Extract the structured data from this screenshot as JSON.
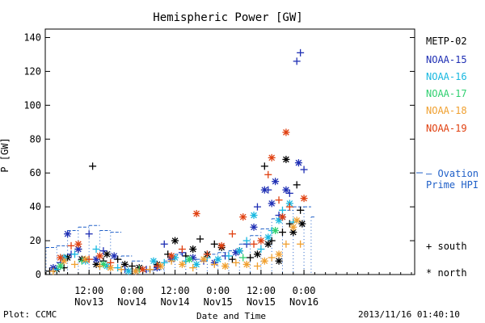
{
  "footer": {
    "plot_label": "Plot: CCMC",
    "timestamp": "2013/11/16 01:40:10"
  },
  "colors": {
    "METP-02": "#000000",
    "NOAA-15": "#1f2fb4",
    "NOAA-16": "#18b8e0",
    "NOAA-17": "#30d070",
    "NOAA-18": "#f0a030",
    "NOAA-19": "#e04010",
    "ovation": "#2060c8"
  },
  "chart_data": {
    "type": "scatter",
    "title": "Hemispheric Power [GW]",
    "xlabel": "Date and Time",
    "ylabel": "P [GW]",
    "ylim": [
      0,
      145
    ],
    "yticks": [
      0,
      20,
      40,
      60,
      80,
      100,
      120,
      140
    ],
    "xlim_hours": [
      0,
      102
    ],
    "xticks": [
      {
        "t": 12,
        "time": "12:00",
        "date": "Nov13"
      },
      {
        "t": 24,
        "time": "0:00",
        "date": "Nov14"
      },
      {
        "t": 36,
        "time": "12:00",
        "date": "Nov14"
      },
      {
        "t": 48,
        "time": "0:00",
        "date": "Nov15"
      },
      {
        "t": 60,
        "time": "12:00",
        "date": "Nov15"
      },
      {
        "t": 72,
        "time": "0:00",
        "date": "Nov16"
      }
    ],
    "legend": [
      "METP-02",
      "NOAA-15",
      "NOAA-16",
      "NOAA-17",
      "NOAA-18",
      "NOAA-19"
    ],
    "symbol_legend": [
      {
        "symbol": "+",
        "label": "south"
      },
      {
        "symbol": "*",
        "label": "north"
      }
    ],
    "ovation_label": [
      "– Ovation",
      "Prime HPI"
    ],
    "series": [
      {
        "name": "METP-02",
        "points": [
          [
            1,
            2,
            "+"
          ],
          [
            3,
            3,
            "*"
          ],
          [
            5,
            4,
            "+"
          ],
          [
            6,
            10,
            "*"
          ],
          [
            9,
            15,
            "+"
          ],
          [
            10,
            9,
            "*"
          ],
          [
            13,
            64,
            "+"
          ],
          [
            14,
            6,
            "*"
          ],
          [
            16,
            8,
            "+"
          ],
          [
            17,
            12,
            "*"
          ],
          [
            20,
            9,
            "+"
          ],
          [
            22,
            6,
            "*"
          ],
          [
            24,
            5,
            "+"
          ],
          [
            26,
            4,
            "*"
          ],
          [
            29,
            3,
            "+"
          ],
          [
            31,
            6,
            "*"
          ],
          [
            34,
            12,
            "+"
          ],
          [
            36,
            20,
            "*"
          ],
          [
            39,
            11,
            "+"
          ],
          [
            41,
            15,
            "*"
          ],
          [
            43,
            21,
            "+"
          ],
          [
            45,
            12,
            "*"
          ],
          [
            47,
            18,
            "+"
          ],
          [
            49,
            16,
            "*"
          ],
          [
            52,
            9,
            "+"
          ],
          [
            54,
            14,
            "*"
          ],
          [
            57,
            10,
            "+"
          ],
          [
            59,
            12,
            "*"
          ],
          [
            61,
            64,
            "+"
          ],
          [
            62,
            18,
            "*"
          ],
          [
            63,
            20,
            "+"
          ],
          [
            65,
            8,
            "*"
          ],
          [
            66,
            25,
            "+"
          ],
          [
            67,
            68,
            "*"
          ],
          [
            68,
            30,
            "+"
          ],
          [
            69,
            25,
            "*"
          ],
          [
            70,
            53,
            "+"
          ],
          [
            71,
            38,
            "+"
          ],
          [
            71.5,
            30,
            "*"
          ]
        ]
      },
      {
        "name": "NOAA-15",
        "points": [
          [
            2,
            4,
            "*"
          ],
          [
            4,
            7,
            "+"
          ],
          [
            6,
            24,
            "*"
          ],
          [
            7,
            12,
            "+"
          ],
          [
            9,
            15,
            "*"
          ],
          [
            12,
            24,
            "+"
          ],
          [
            14,
            9,
            "*"
          ],
          [
            16,
            14,
            "+"
          ],
          [
            19,
            11,
            "*"
          ],
          [
            22,
            3,
            "+"
          ],
          [
            25,
            2,
            "*"
          ],
          [
            28,
            3,
            "+"
          ],
          [
            31,
            4,
            "*"
          ],
          [
            33,
            18,
            "+"
          ],
          [
            35,
            9,
            "*"
          ],
          [
            38,
            13,
            "+"
          ],
          [
            41,
            10,
            "*"
          ],
          [
            44,
            8,
            "+"
          ],
          [
            47,
            7,
            "*"
          ],
          [
            50,
            11,
            "+"
          ],
          [
            53,
            13,
            "*"
          ],
          [
            56,
            18,
            "+"
          ],
          [
            58,
            28,
            "*"
          ],
          [
            59,
            40,
            "+"
          ],
          [
            61,
            50,
            "*"
          ],
          [
            62,
            50,
            "+"
          ],
          [
            63,
            42,
            "*"
          ],
          [
            64,
            55,
            "*"
          ],
          [
            65,
            35,
            "+"
          ],
          [
            66,
            34,
            "*"
          ],
          [
            67,
            50,
            "*"
          ],
          [
            68,
            48,
            "+"
          ],
          [
            70,
            126,
            "+"
          ],
          [
            71,
            131,
            "+"
          ],
          [
            70.5,
            66,
            "*"
          ],
          [
            72,
            62,
            "+"
          ]
        ]
      },
      {
        "name": "NOAA-16",
        "points": [
          [
            3,
            3,
            "+"
          ],
          [
            5,
            10,
            "*"
          ],
          [
            8,
            12,
            "+"
          ],
          [
            11,
            8,
            "*"
          ],
          [
            14,
            15,
            "+"
          ],
          [
            17,
            5,
            "*"
          ],
          [
            20,
            4,
            "+"
          ],
          [
            23,
            2,
            "*"
          ],
          [
            27,
            3,
            "+"
          ],
          [
            30,
            8,
            "*"
          ],
          [
            33,
            7,
            "+"
          ],
          [
            36,
            10,
            "*"
          ],
          [
            39,
            8,
            "+"
          ],
          [
            42,
            6,
            "*"
          ],
          [
            45,
            10,
            "+"
          ],
          [
            48,
            9,
            "*"
          ],
          [
            51,
            11,
            "+"
          ],
          [
            54,
            14,
            "*"
          ],
          [
            56,
            20,
            "+"
          ],
          [
            58,
            35,
            "*"
          ],
          [
            60,
            15,
            "+"
          ],
          [
            62,
            22,
            "*"
          ],
          [
            63,
            26,
            "+"
          ],
          [
            65,
            32,
            "*"
          ],
          [
            66,
            38,
            "+"
          ],
          [
            68,
            42,
            "*"
          ],
          [
            69,
            31,
            "+"
          ]
        ]
      },
      {
        "name": "NOAA-17",
        "points": [
          [
            4,
            5,
            "*"
          ],
          [
            10,
            8,
            "+"
          ],
          [
            16,
            6,
            "*"
          ],
          [
            26,
            3,
            "+"
          ],
          [
            40,
            9,
            "*"
          ],
          [
            55,
            10,
            "+"
          ],
          [
            64,
            26,
            "*"
          ]
        ]
      },
      {
        "name": "NOAA-18",
        "points": [
          [
            2,
            2,
            "+"
          ],
          [
            5,
            8,
            "*"
          ],
          [
            8,
            6,
            "+"
          ],
          [
            11,
            9,
            "*"
          ],
          [
            15,
            5,
            "+"
          ],
          [
            18,
            4,
            "*"
          ],
          [
            21,
            3,
            "+"
          ],
          [
            25,
            2,
            "*"
          ],
          [
            29,
            3,
            "+"
          ],
          [
            32,
            5,
            "*"
          ],
          [
            35,
            8,
            "+"
          ],
          [
            38,
            6,
            "*"
          ],
          [
            41,
            4,
            "+"
          ],
          [
            44,
            9,
            "*"
          ],
          [
            47,
            6,
            "+"
          ],
          [
            50,
            5,
            "*"
          ],
          [
            53,
            7,
            "+"
          ],
          [
            56,
            6,
            "*"
          ],
          [
            59,
            5,
            "+"
          ],
          [
            61,
            8,
            "*"
          ],
          [
            63,
            10,
            "+"
          ],
          [
            65,
            12,
            "*"
          ],
          [
            67,
            18,
            "+"
          ],
          [
            69,
            28,
            "*"
          ],
          [
            71,
            18,
            "+"
          ],
          [
            70,
            32,
            "*"
          ]
        ]
      },
      {
        "name": "NOAA-19",
        "points": [
          [
            4,
            10,
            "*"
          ],
          [
            7,
            17,
            "+"
          ],
          [
            9,
            18,
            "*"
          ],
          [
            12,
            9,
            "+"
          ],
          [
            15,
            11,
            "*"
          ],
          [
            18,
            7,
            "+"
          ],
          [
            27,
            3,
            "*"
          ],
          [
            31,
            5,
            "+"
          ],
          [
            35,
            11,
            "*"
          ],
          [
            38,
            15,
            "+"
          ],
          [
            42,
            36,
            "*"
          ],
          [
            45,
            12,
            "+"
          ],
          [
            49,
            17,
            "*"
          ],
          [
            52,
            24,
            "+"
          ],
          [
            55,
            34,
            "*"
          ],
          [
            58,
            18,
            "+"
          ],
          [
            60,
            20,
            "*"
          ],
          [
            62,
            59,
            "+"
          ],
          [
            63,
            69,
            "*"
          ],
          [
            65,
            44,
            "+"
          ],
          [
            66,
            34,
            "*"
          ],
          [
            67,
            84,
            "*"
          ],
          [
            68,
            40,
            "+"
          ],
          [
            72,
            45,
            "*"
          ]
        ]
      }
    ],
    "ovation_hpi": [
      [
        0,
        16
      ],
      [
        3,
        17
      ],
      [
        6,
        26
      ],
      [
        9,
        28
      ],
      [
        12,
        29
      ],
      [
        15,
        26
      ],
      [
        18,
        25
      ],
      [
        21,
        11
      ],
      [
        24,
        8
      ],
      [
        27,
        2
      ],
      [
        30,
        3
      ],
      [
        33,
        8
      ],
      [
        36,
        12
      ],
      [
        39,
        9
      ],
      [
        42,
        9
      ],
      [
        45,
        12
      ],
      [
        48,
        13
      ],
      [
        51,
        14
      ],
      [
        54,
        18
      ],
      [
        57,
        23
      ],
      [
        60,
        27
      ],
      [
        63,
        33
      ],
      [
        66,
        38
      ],
      [
        69,
        40
      ],
      [
        72,
        40
      ],
      [
        74,
        34
      ]
    ]
  }
}
